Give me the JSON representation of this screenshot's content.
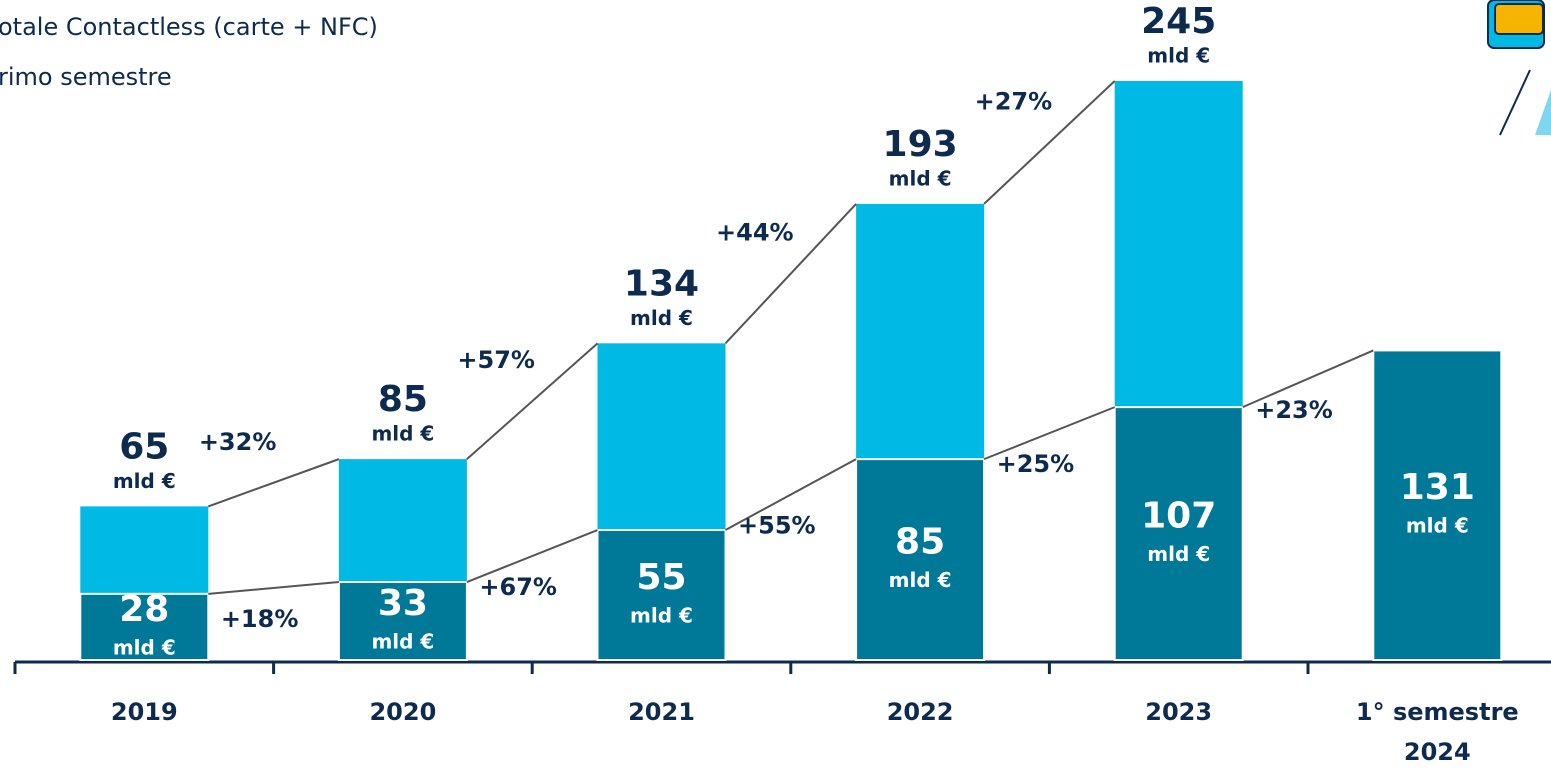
{
  "chart_data": {
    "type": "bar",
    "legend": [
      "otale Contactless (carte + NFC)",
      "rimo semestre"
    ],
    "unit": "mld €",
    "categories": [
      "2019",
      "2020",
      "2021",
      "2022",
      "2023",
      "1° semestre 2024"
    ],
    "series": [
      {
        "name": "otale Contactless (carte + NFC)",
        "color": "#00b9e5",
        "values": [
          65,
          85,
          134,
          193,
          245,
          null
        ]
      },
      {
        "name": "rimo semestre",
        "color": "#007898",
        "values": [
          28,
          33,
          55,
          85,
          107,
          131
        ]
      }
    ],
    "total_growth": [
      "+32%",
      "+57%",
      "+44%",
      "+27%"
    ],
    "semester_growth": [
      "+18%",
      "+67%",
      "+55%",
      "+25%",
      "+23%"
    ]
  }
}
